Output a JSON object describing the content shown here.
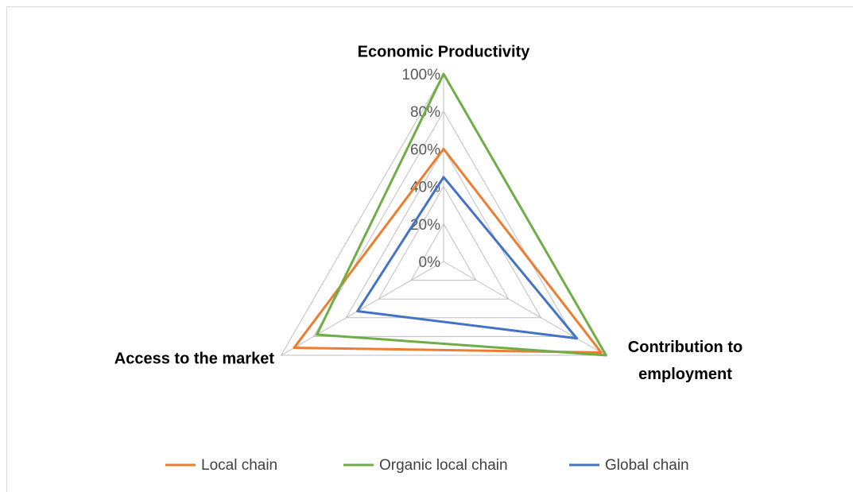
{
  "chart_data": {
    "type": "radar",
    "categories": [
      "Economic Productivity",
      "Contribution to employment",
      "Access to the market"
    ],
    "series": [
      {
        "name": "Local chain",
        "color": "#ed7d31",
        "values": [
          60,
          97,
          92
        ]
      },
      {
        "name": "Organic local chain",
        "color": "#70ad47",
        "values": [
          100,
          100,
          78
        ]
      },
      {
        "name": "Global chain",
        "color": "#4472c4",
        "values": [
          45,
          82,
          53
        ]
      }
    ],
    "ylim": [
      0,
      100
    ],
    "yticks": [
      {
        "value": 0,
        "label": "0%"
      },
      {
        "value": 20,
        "label": "20%"
      },
      {
        "value": 40,
        "label": "40%"
      },
      {
        "value": 60,
        "label": "60%"
      },
      {
        "value": 80,
        "label": "80%"
      },
      {
        "value": 100,
        "label": "100%"
      }
    ],
    "grid": true,
    "legend": "bottom"
  }
}
